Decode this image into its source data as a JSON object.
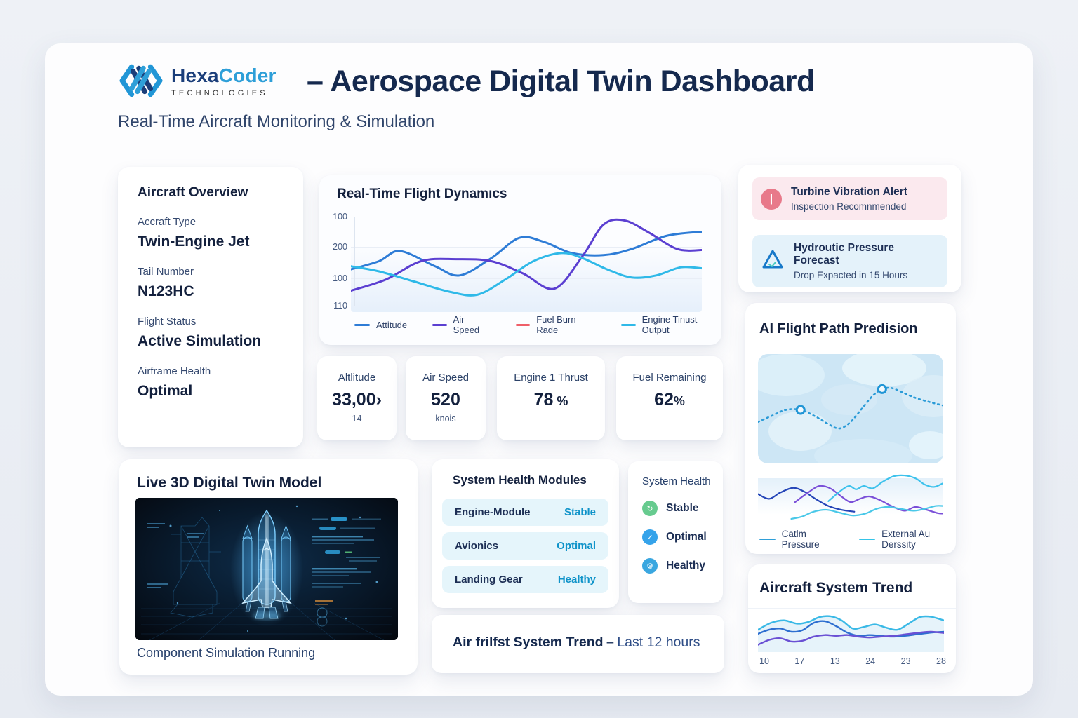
{
  "header": {
    "brand": {
      "name_part1": "Hexa",
      "name_part2": "Coder",
      "tagline": "TECHNOLOGIES"
    },
    "title": "– Aerospace Digital Twin Dashboard",
    "subtitle": "Real-Time Aircraft Monitoring & Simulation"
  },
  "aircraft_overview": {
    "title": "Aircraft Overview",
    "fields": [
      {
        "label": "Accraft Type",
        "value": "Twin-Engine Jet"
      },
      {
        "label": "Tail Number",
        "value": "N123HC"
      },
      {
        "label": "Flight Status",
        "value": "Active Simulation"
      },
      {
        "label": "Airframe Health",
        "value": "Optimal"
      }
    ]
  },
  "metrics": [
    {
      "label": "Altlitude",
      "value": "33,00›",
      "suffix": "",
      "sub": "14"
    },
    {
      "label": "Air Speed",
      "value": "520",
      "suffix": "",
      "sub": "knois"
    },
    {
      "label": "Engine 1 Thrust",
      "value": "78",
      "suffix": " %",
      "sub": ""
    },
    {
      "label": "Fuel Remaining",
      "value": "62",
      "suffix": "%",
      "sub": ""
    }
  ],
  "digital_twin": {
    "title": "Live 3D Digital Twin Model",
    "caption": "Component Simulation Running"
  },
  "system_health_modules": {
    "title": "System Health Modules",
    "rows": [
      {
        "name": "Engine-Module",
        "status": "Stable",
        "color": "#0f93c9"
      },
      {
        "name": "Avionics",
        "status": "Optimal",
        "color": "#0f93c9"
      },
      {
        "name": "Landing Gear",
        "status": "Healthy",
        "color": "#0f93c9"
      }
    ]
  },
  "system_health": {
    "title": "System Health",
    "items": [
      {
        "label": "Stable",
        "icon": "↻",
        "color": "#67cb8f"
      },
      {
        "label": "Optimal",
        "icon": "✓",
        "color": "#35a3ea"
      },
      {
        "label": "Healthy",
        "icon": "⚙",
        "color": "#3aa7e0"
      }
    ]
  },
  "trend_banner": {
    "title": "Air frilfst System Trend",
    "dash": "–",
    "subtitle": "Last 12 hours"
  },
  "alerts": {
    "items": [
      {
        "title": "Turbine Vibration Alert",
        "subtitle": "Inspection Recomnmended",
        "icon": "|",
        "icon_bg": "#e8798a",
        "bg": "#fbe9ee"
      },
      {
        "title": "Hydroutic Pressure Forecast",
        "subtitle": "Drop Expacted in 15 Hours",
        "icon_color": "#1779c9",
        "bg": "#e4f2fa"
      }
    ]
  },
  "flight_path": {
    "title": "AI Flight Path Predision",
    "legend": [
      {
        "label": "Catlm Pressure",
        "color": "#2f9fd8"
      },
      {
        "label": "External Au Derssity",
        "color": "#35c4e8"
      }
    ]
  },
  "system_trend": {
    "title": "Aircraft System Trend"
  },
  "chart_data": [
    {
      "id": "flight-dynamics",
      "type": "line",
      "title": "Real-Time Flight Dynamıcs",
      "y_ticks": [
        "100",
        "200",
        "100",
        "110"
      ],
      "legend_position": "bottom",
      "grid": true,
      "series": [
        {
          "name": "Attitude",
          "color": "#2e7cd6",
          "width": 3,
          "points": [
            [
              0,
              58
            ],
            [
              8,
              50
            ],
            [
              14,
              40
            ],
            [
              24,
              55
            ],
            [
              31,
              64
            ],
            [
              40,
              47
            ],
            [
              48,
              27
            ],
            [
              55,
              31
            ],
            [
              63,
              42
            ],
            [
              72,
              44
            ],
            [
              80,
              38
            ],
            [
              90,
              25
            ],
            [
              100,
              21
            ]
          ]
        },
        {
          "name": "Air Speed",
          "color": "#5b3fd1",
          "width": 3,
          "points": [
            [
              0,
              79
            ],
            [
              10,
              68
            ],
            [
              20,
              50
            ],
            [
              30,
              48
            ],
            [
              40,
              50
            ],
            [
              49,
              62
            ],
            [
              58,
              77
            ],
            [
              66,
              45
            ],
            [
              72,
              14
            ],
            [
              78,
              10
            ],
            [
              85,
              22
            ],
            [
              93,
              38
            ],
            [
              100,
              39
            ]
          ]
        },
        {
          "name": "Fuel Burn Rade",
          "color": "#ef5f68",
          "width": 3,
          "points": []
        },
        {
          "name": "Engine Tinust Output",
          "color": "#2fb9e8",
          "width": 3,
          "points": [
            [
              0,
              55
            ],
            [
              8,
              60
            ],
            [
              18,
              70
            ],
            [
              28,
              80
            ],
            [
              36,
              83
            ],
            [
              44,
              68
            ],
            [
              52,
              50
            ],
            [
              60,
              42
            ],
            [
              66,
              47
            ],
            [
              73,
              58
            ],
            [
              80,
              66
            ],
            [
              87,
              64
            ],
            [
              94,
              56
            ],
            [
              100,
              57
            ]
          ]
        }
      ]
    },
    {
      "id": "flight-path",
      "type": "line",
      "series": [
        {
          "name": "predicted-path",
          "color": "#2b9bd7",
          "width": 2.6,
          "dash": "2 5",
          "points": [
            [
              0,
              62
            ],
            [
              8,
              56
            ],
            [
              15,
              51
            ],
            [
              23,
              51
            ],
            [
              31,
              57
            ],
            [
              38,
              64
            ],
            [
              44,
              68
            ],
            [
              50,
              62
            ],
            [
              56,
              50
            ],
            [
              62,
              38
            ],
            [
              67,
              32
            ],
            [
              72,
              31
            ],
            [
              78,
              35
            ],
            [
              85,
              40
            ],
            [
              93,
              44
            ],
            [
              100,
              47
            ]
          ]
        }
      ],
      "markers": [
        {
          "x": 23,
          "y": 51
        },
        {
          "x": 67,
          "y": 32
        }
      ]
    },
    {
      "id": "path-squiggle",
      "type": "line",
      "series": [
        {
          "name": "pressure-navy",
          "color": "#2646b8",
          "width": 2.2,
          "points": [
            [
              0,
              45
            ],
            [
              6,
              55
            ],
            [
              12,
              42
            ],
            [
              19,
              32
            ],
            [
              25,
              40
            ],
            [
              31,
              55
            ],
            [
              38,
              70
            ],
            [
              45,
              78
            ],
            [
              52,
              82
            ]
          ]
        },
        {
          "name": "pressure-purple",
          "color": "#7a4fd8",
          "width": 2.2,
          "points": [
            [
              20,
              62
            ],
            [
              27,
              42
            ],
            [
              33,
              28
            ],
            [
              39,
              33
            ],
            [
              45,
              50
            ],
            [
              50,
              62
            ],
            [
              55,
              55
            ],
            [
              60,
              50
            ],
            [
              66,
              58
            ],
            [
              72,
              70
            ],
            [
              79,
              80
            ],
            [
              85,
              72
            ],
            [
              91,
              78
            ],
            [
              97,
              85
            ],
            [
              100,
              86
            ]
          ]
        },
        {
          "name": "density-cyan",
          "color": "#3ec2ec",
          "width": 2.2,
          "points": [
            [
              38,
              60
            ],
            [
              44,
              40
            ],
            [
              49,
              28
            ],
            [
              53,
              35
            ],
            [
              57,
              28
            ],
            [
              62,
              33
            ],
            [
              67,
              20
            ],
            [
              73,
              8
            ],
            [
              79,
              6
            ],
            [
              85,
              12
            ],
            [
              90,
              25
            ],
            [
              95,
              30
            ],
            [
              100,
              22
            ]
          ]
        },
        {
          "name": "density-light",
          "color": "#49c8e8",
          "width": 2.2,
          "points": [
            [
              18,
              97
            ],
            [
              24,
              92
            ],
            [
              30,
              82
            ],
            [
              37,
              78
            ],
            [
              44,
              84
            ],
            [
              51,
              90
            ],
            [
              58,
              86
            ],
            [
              64,
              76
            ],
            [
              70,
              72
            ],
            [
              77,
              76
            ],
            [
              84,
              80
            ],
            [
              90,
              76
            ],
            [
              96,
              70
            ],
            [
              100,
              70
            ]
          ]
        }
      ]
    },
    {
      "id": "system-trend",
      "type": "line",
      "x_labels": [
        "10",
        "17",
        "13",
        "24",
        "23",
        "28"
      ],
      "series": [
        {
          "name": "trend-cyan",
          "color": "#3ab9e6",
          "width": 2.4,
          "fill": "rgba(205,231,246,0.5)",
          "points": [
            [
              0,
              45
            ],
            [
              7,
              28
            ],
            [
              14,
              22
            ],
            [
              21,
              30
            ],
            [
              27,
              26
            ],
            [
              33,
              14
            ],
            [
              39,
              12
            ],
            [
              45,
              22
            ],
            [
              51,
              42
            ],
            [
              57,
              38
            ],
            [
              63,
              32
            ],
            [
              69,
              40
            ],
            [
              75,
              45
            ],
            [
              81,
              30
            ],
            [
              87,
              14
            ],
            [
              93,
              13
            ],
            [
              100,
              22
            ]
          ]
        },
        {
          "name": "trend-blue",
          "color": "#2e6fd0",
          "width": 2.4,
          "points": [
            [
              0,
              55
            ],
            [
              6,
              45
            ],
            [
              12,
              42
            ],
            [
              18,
              50
            ],
            [
              24,
              46
            ],
            [
              30,
              28
            ],
            [
              36,
              24
            ],
            [
              42,
              36
            ],
            [
              48,
              52
            ],
            [
              54,
              60
            ],
            [
              60,
              58
            ],
            [
              66,
              60
            ],
            [
              72,
              62
            ],
            [
              79,
              60
            ],
            [
              86,
              56
            ],
            [
              93,
              52
            ],
            [
              100,
              50
            ]
          ]
        },
        {
          "name": "trend-purple",
          "color": "#6a50d4",
          "width": 2.4,
          "points": [
            [
              0,
              82
            ],
            [
              6,
              70
            ],
            [
              12,
              66
            ],
            [
              18,
              74
            ],
            [
              24,
              72
            ],
            [
              30,
              62
            ],
            [
              36,
              58
            ],
            [
              42,
              60
            ],
            [
              48,
              58
            ],
            [
              54,
              62
            ],
            [
              60,
              64
            ],
            [
              66,
              62
            ],
            [
              73,
              60
            ],
            [
              80,
              56
            ],
            [
              87,
              52
            ],
            [
              93,
              50
            ],
            [
              100,
              53
            ]
          ]
        }
      ]
    }
  ]
}
